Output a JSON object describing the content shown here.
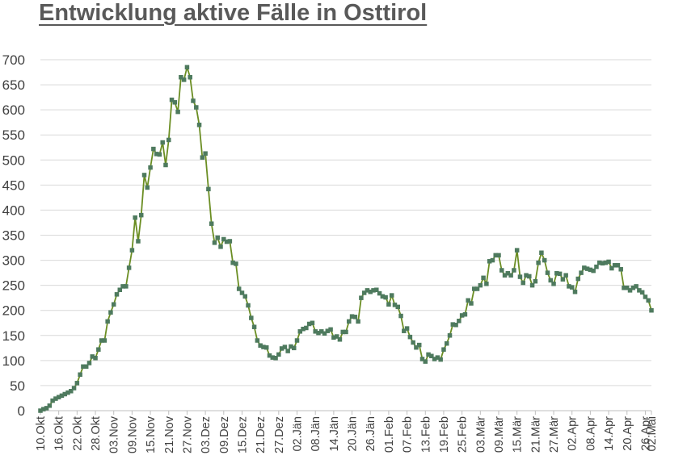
{
  "chart_data": {
    "type": "line",
    "title": "Entwicklung aktive Fälle in Osttirol",
    "xlabel": "",
    "ylabel": "",
    "ylim": [
      0,
      700
    ],
    "yticks": [
      0,
      50,
      100,
      150,
      200,
      250,
      300,
      350,
      400,
      450,
      500,
      550,
      600,
      650,
      700
    ],
    "grid": true,
    "legend": "none",
    "line_color": "#6B8E23",
    "marker_color": "#4E7A5E",
    "x_start": "10.Okt",
    "x_end": "02.Mai",
    "x_tick_labels": [
      "10.Okt",
      "16.Okt",
      "22.Okt",
      "28.Okt",
      "03.Nov",
      "09.Nov",
      "15.Nov",
      "21.Nov",
      "27.Nov",
      "03.Dez",
      "09.Dez",
      "15.Dez",
      "21.Dez",
      "27.Dez",
      "02.Jän",
      "08.Jän",
      "14.Jän",
      "20.Jän",
      "26.Jän",
      "01.Feb",
      "07.Feb",
      "13.Feb",
      "19.Feb",
      "25.Feb",
      "03.Mär",
      "09.Mär",
      "15.Mär",
      "21.Mär",
      "27.Mär",
      "02.Apr",
      "08.Apr",
      "14.Apr",
      "20.Apr",
      "26.Apr",
      "02.Mai"
    ],
    "series": [
      {
        "values": [
          0,
          3,
          5,
          10,
          20,
          24,
          27,
          30,
          33,
          36,
          39,
          45,
          55,
          72,
          88,
          88,
          95,
          108,
          105,
          122,
          140,
          140,
          178,
          196,
          212,
          232,
          241,
          248,
          248,
          285,
          320,
          385,
          338,
          390,
          470,
          445,
          485,
          522,
          512,
          511,
          535,
          490,
          540,
          620,
          615,
          596,
          665,
          660,
          685,
          665,
          618,
          605,
          570,
          505,
          513,
          442,
          373,
          335,
          345,
          327,
          342,
          337,
          338,
          295,
          293,
          243,
          235,
          228,
          210,
          185,
          167,
          140,
          130,
          127,
          126,
          110,
          106,
          105,
          112,
          124,
          127,
          119,
          128,
          125,
          140,
          158,
          163,
          165,
          173,
          175,
          158,
          155,
          158,
          154,
          159,
          162,
          146,
          148,
          142,
          157,
          157,
          178,
          188,
          187,
          178,
          225,
          235,
          240,
          237,
          240,
          241,
          234,
          228,
          226,
          212,
          230,
          211,
          207,
          189,
          159,
          164,
          147,
          136,
          126,
          131,
          103,
          98,
          112,
          109,
          103,
          106,
          102,
          122,
          134,
          150,
          172,
          171,
          179,
          190,
          192,
          220,
          214,
          243,
          243,
          250,
          265,
          253,
          298,
          300,
          310,
          310,
          280,
          270,
          274,
          270,
          280,
          320,
          267,
          255,
          270,
          268,
          250,
          258,
          295,
          315,
          300,
          275,
          260,
          253,
          274,
          273,
          262,
          270,
          248,
          246,
          237,
          263,
          275,
          285,
          283,
          281,
          279,
          287,
          295,
          294,
          295,
          297,
          284,
          290,
          290,
          282,
          245,
          245,
          240,
          245,
          248,
          240,
          236,
          227,
          220,
          200
        ]
      }
    ]
  }
}
